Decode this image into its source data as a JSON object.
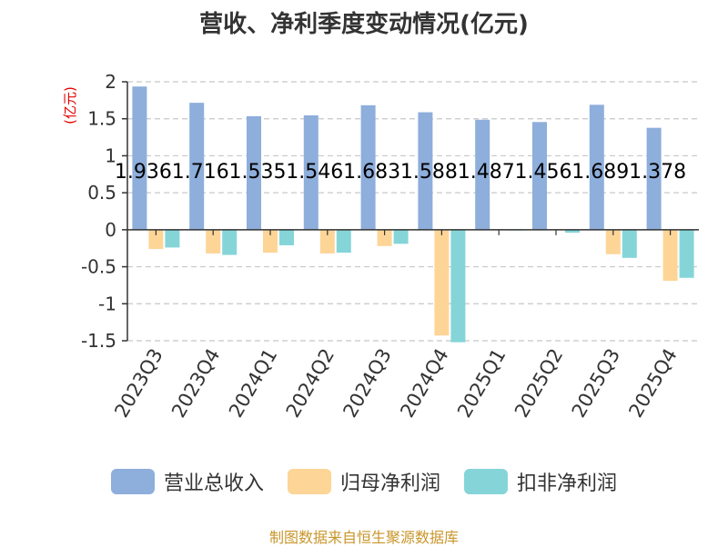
{
  "chart_data": {
    "type": "bar",
    "title": "营收、净利季度变动情况(亿元)",
    "ylabel": "(亿元)",
    "ylim": [
      -1.5,
      2
    ],
    "yticks": [
      2,
      1.5,
      1,
      0.5,
      0,
      -0.5,
      -1,
      -1.5
    ],
    "categories": [
      "2023Q3",
      "2023Q4",
      "2024Q1",
      "2024Q2",
      "2024Q3",
      "2024Q4",
      "2025Q1",
      "2025Q2",
      "2025Q3",
      "2025Q4"
    ],
    "series": [
      {
        "name": "营业总收入",
        "color": "#8eaedb",
        "values": [
          1.936,
          1.716,
          1.535,
          1.546,
          1.683,
          1.588,
          1.487,
          1.456,
          1.689,
          1.378
        ]
      },
      {
        "name": "归母净利润",
        "color": "#fdd597",
        "values": [
          -0.26,
          -0.32,
          -0.31,
          -0.32,
          -0.22,
          -1.43,
          0.01,
          0.01,
          -0.33,
          -0.69
        ]
      },
      {
        "name": "扣非净利润",
        "color": "#85d5d8",
        "values": [
          -0.24,
          -0.34,
          -0.21,
          -0.31,
          -0.19,
          -1.52,
          -0.01,
          -0.04,
          -0.38,
          -0.65
        ]
      }
    ],
    "data_labels": [
      "1.936",
      "1.716",
      "1.535",
      "1.546",
      "1.683",
      "1.588",
      "1.487",
      "1.456",
      "1.689",
      "1.378"
    ],
    "grid": true,
    "legend_position": "bottom"
  },
  "source": "制图数据来自恒生聚源数据库"
}
